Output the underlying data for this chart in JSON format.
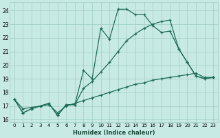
{
  "xlabel": "Humidex (Indice chaleur)",
  "bg_color": "#c8eae4",
  "grid_color": "#9dccc4",
  "line_color": "#1e6b5a",
  "xlim": [
    -0.5,
    23.5
  ],
  "ylim": [
    15.8,
    24.6
  ],
  "yticks": [
    16,
    17,
    18,
    19,
    20,
    21,
    22,
    23,
    24
  ],
  "xticks": [
    0,
    1,
    2,
    3,
    4,
    5,
    6,
    7,
    8,
    9,
    10,
    11,
    12,
    13,
    14,
    15,
    16,
    17,
    18,
    19,
    20,
    21,
    22,
    23
  ],
  "line1_x": [
    0,
    1,
    2,
    3,
    4,
    5,
    6,
    7,
    8,
    9,
    10,
    11,
    12,
    13,
    14,
    15,
    16,
    17,
    18,
    19,
    20,
    21,
    22,
    23
  ],
  "line1_y": [
    17.5,
    16.5,
    16.8,
    17.0,
    17.2,
    16.3,
    17.1,
    17.1,
    19.6,
    19.0,
    22.7,
    21.9,
    24.1,
    24.1,
    23.7,
    23.7,
    22.9,
    22.4,
    22.5,
    21.2,
    20.2,
    19.2,
    19.0,
    19.1
  ],
  "line2_x": [
    0,
    1,
    2,
    3,
    4,
    5,
    6,
    7,
    8,
    9,
    10,
    11,
    12,
    13,
    14,
    15,
    16,
    17,
    18,
    19,
    20,
    21,
    22,
    23
  ],
  "line2_y": [
    17.5,
    16.5,
    16.8,
    17.0,
    17.2,
    16.3,
    17.1,
    17.1,
    18.3,
    18.8,
    19.5,
    20.2,
    21.0,
    21.8,
    22.3,
    22.7,
    23.0,
    23.2,
    23.3,
    21.2,
    20.2,
    19.2,
    19.0,
    19.1
  ],
  "line3_x": [
    0,
    1,
    2,
    3,
    4,
    5,
    6,
    7,
    8,
    9,
    10,
    11,
    12,
    13,
    14,
    15,
    16,
    17,
    18,
    19,
    20,
    21,
    22,
    23
  ],
  "line3_y": [
    17.5,
    16.8,
    16.9,
    17.0,
    17.1,
    16.5,
    17.0,
    17.2,
    17.4,
    17.6,
    17.8,
    18.0,
    18.2,
    18.4,
    18.6,
    18.7,
    18.9,
    19.0,
    19.1,
    19.2,
    19.3,
    19.4,
    19.1,
    19.1
  ]
}
